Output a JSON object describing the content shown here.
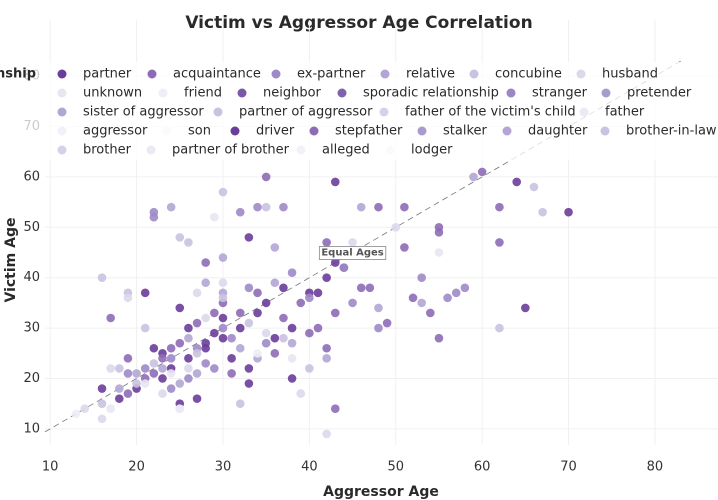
{
  "chart_data": {
    "type": "scatter",
    "title": "Victim vs Aggressor Age Correlation",
    "x_label": "Aggressor Age",
    "y_label": "Victim Age",
    "legend_title": "Relationship",
    "xlim": [
      9.4,
      87.3
    ],
    "ylim": [
      6.8,
      83.2
    ],
    "xticks": [
      10,
      20,
      30,
      40,
      50,
      60,
      70,
      80
    ],
    "yticks": [
      10,
      20,
      30,
      40,
      50,
      60,
      70,
      80
    ],
    "grid": true,
    "annotations": [
      {
        "text": "Equal Ages",
        "x": 45,
        "y": 45
      }
    ],
    "series": [
      {
        "name": "partner",
        "color": "#6a3d9a",
        "x": [
          33,
          43,
          70,
          65,
          64,
          21,
          33,
          27,
          25,
          30,
          42,
          43,
          44,
          40,
          38,
          36,
          34,
          32,
          30,
          28,
          26,
          24,
          22,
          20,
          18,
          16,
          23,
          29,
          31,
          35,
          37,
          41,
          26,
          28,
          33,
          38,
          23,
          25
        ],
        "y": [
          48,
          59,
          53,
          34,
          59,
          37,
          19,
          16,
          34,
          32,
          40,
          43,
          42,
          37,
          30,
          28,
          33,
          30,
          28,
          26,
          24,
          22,
          26,
          18,
          16,
          18,
          25,
          29,
          24,
          35,
          38,
          37,
          30,
          27,
          22,
          20,
          20,
          15
        ]
      },
      {
        "name": "acquaintance",
        "color": "#8e6bb5",
        "x": [
          35,
          55,
          55,
          51,
          60,
          62,
          62,
          42,
          46,
          48,
          51,
          55,
          52,
          49,
          54,
          41,
          42,
          39,
          37,
          34,
          32,
          30,
          28,
          27,
          25,
          23,
          22,
          19,
          17,
          19,
          21,
          24,
          29,
          31,
          36,
          40,
          43,
          43,
          47
        ],
        "y": [
          60,
          50,
          49,
          46,
          61,
          54,
          47,
          47,
          38,
          54,
          54,
          28,
          36,
          31,
          33,
          30,
          26,
          35,
          32,
          37,
          33,
          35,
          43,
          31,
          27,
          24,
          21,
          24,
          32,
          17,
          20,
          26,
          33,
          21,
          25,
          29,
          14,
          33,
          38
        ]
      },
      {
        "name": "ex-partner",
        "color": "#9e8ac8",
        "x": [
          22,
          22,
          32,
          44,
          45,
          48,
          56,
          58,
          53,
          57,
          34,
          37,
          40,
          38,
          33,
          30,
          27,
          24,
          21,
          19,
          26,
          29,
          35,
          31,
          28,
          24
        ],
        "y": [
          53,
          52,
          53,
          42,
          35,
          30,
          36,
          38,
          40,
          37,
          54,
          54,
          36,
          41,
          38,
          30,
          26,
          24,
          22,
          21,
          20,
          22,
          27,
          28,
          23,
          18
        ]
      },
      {
        "name": "relative",
        "color": "#b3a6d4",
        "x": [
          24,
          28,
          30,
          36,
          59,
          46,
          48,
          53,
          36,
          32,
          26,
          23,
          20,
          18,
          34,
          38,
          42,
          27,
          30,
          25
        ],
        "y": [
          54,
          39,
          44,
          46,
          60,
          54,
          34,
          35,
          39,
          26,
          28,
          22,
          21,
          18,
          24,
          27,
          24,
          21,
          37,
          19
        ]
      },
      {
        "name": "concubine",
        "color": "#c9c2e0",
        "x": [
          16,
          19,
          25,
          26,
          30,
          35,
          67,
          66,
          62,
          30,
          21,
          27,
          33,
          37,
          16,
          18,
          20,
          40,
          32,
          25,
          22
        ],
        "y": [
          40,
          37,
          48,
          47,
          57,
          54,
          53,
          58,
          30,
          36,
          30,
          25,
          31,
          28,
          15,
          22,
          19,
          22,
          15,
          14,
          23
        ]
      },
      {
        "name": "husband",
        "color": "#dcd8ec",
        "x": [
          14,
          16,
          19,
          30,
          45,
          50,
          39,
          42,
          27,
          35,
          28,
          23,
          26,
          17
        ],
        "y": [
          14,
          12,
          36,
          39,
          47,
          50,
          17,
          9,
          37,
          29,
          32,
          17,
          22,
          22
        ]
      },
      {
        "name": "unknown",
        "color": "#e8e5f1",
        "x": [
          17,
          21,
          29,
          55,
          24,
          38
        ],
        "y": [
          14,
          19,
          52,
          45,
          21,
          24
        ]
      },
      {
        "name": "friend",
        "color": "#efedf5",
        "x": [
          25,
          34,
          13
        ],
        "y": [
          14,
          25,
          13
        ]
      },
      {
        "name": "neighbor",
        "color": "#7b57a8",
        "x": [],
        "y": []
      },
      {
        "name": "sporadic relationship",
        "color": "#7f62ac",
        "x": [],
        "y": []
      },
      {
        "name": "stranger",
        "color": "#9b85c4",
        "x": [],
        "y": []
      },
      {
        "name": "pretender",
        "color": "#a89bd0",
        "x": [],
        "y": []
      },
      {
        "name": "sister of aggressor",
        "color": "#b3a6d4",
        "x": [],
        "y": []
      },
      {
        "name": "partner of aggressor",
        "color": "#c9c2e0",
        "x": [],
        "y": []
      },
      {
        "name": "father of the victim's child",
        "color": "#d6d1e8",
        "x": [],
        "y": []
      },
      {
        "name": "father",
        "color": "#ebe9f3",
        "x": [],
        "y": []
      },
      {
        "name": "aggressor",
        "color": "#f2f1f7",
        "x": [],
        "y": []
      },
      {
        "name": "son",
        "color": "#fbfbfd",
        "x": [],
        "y": []
      },
      {
        "name": "driver",
        "color": "#6a3d9a",
        "x": [],
        "y": []
      },
      {
        "name": "stepfather",
        "color": "#8e6bb5",
        "x": [],
        "y": []
      },
      {
        "name": "stalker",
        "color": "#a89bd0",
        "x": [],
        "y": []
      },
      {
        "name": "daughter",
        "color": "#b3a6d4",
        "x": [],
        "y": []
      },
      {
        "name": "brother-in-law",
        "color": "#c9c2e0",
        "x": [],
        "y": []
      },
      {
        "name": "brother",
        "color": "#d6d1e8",
        "x": [],
        "y": []
      },
      {
        "name": "partner of brother",
        "color": "#ebe9f3",
        "x": [],
        "y": []
      },
      {
        "name": "alleged",
        "color": "#f2f1f7",
        "x": [],
        "y": []
      },
      {
        "name": "lodger",
        "color": "#fafafa",
        "x": [],
        "y": []
      }
    ]
  }
}
